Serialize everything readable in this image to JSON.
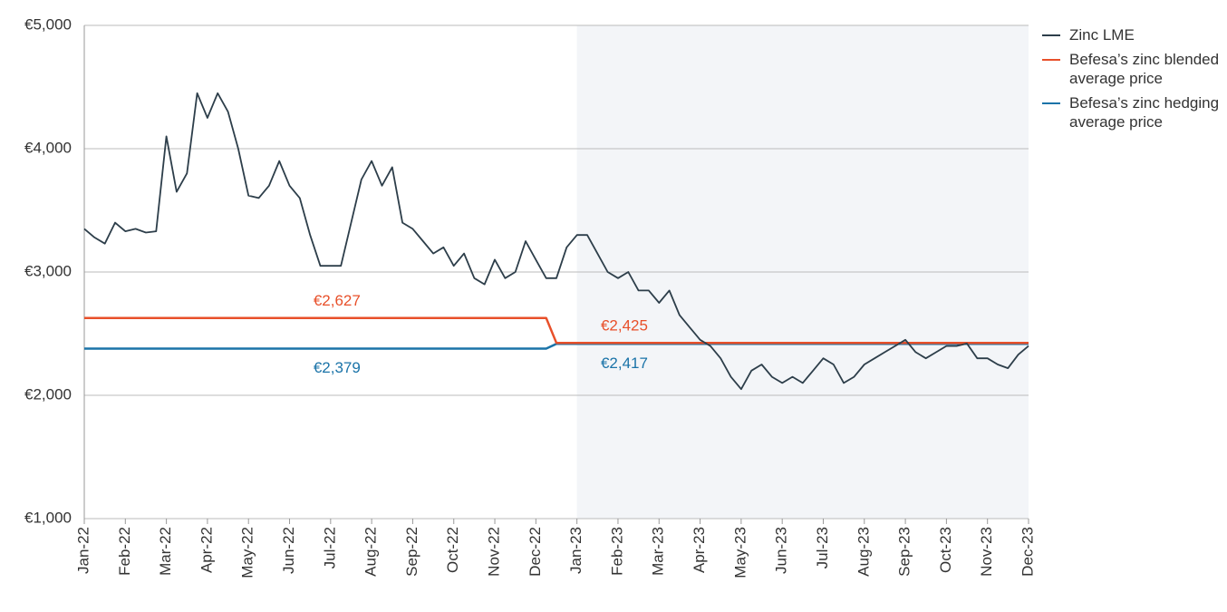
{
  "chart_data": {
    "type": "line",
    "categories": [
      "Jan-22",
      null,
      null,
      null,
      "Feb-22",
      null,
      null,
      null,
      "Mar-22",
      null,
      null,
      null,
      "Apr-22",
      null,
      null,
      null,
      "May-22",
      null,
      null,
      null,
      "Jun-22",
      null,
      null,
      null,
      "Jul-22",
      null,
      null,
      null,
      "Aug-22",
      null,
      null,
      null,
      "Sep-22",
      null,
      null,
      null,
      "Oct-22",
      null,
      null,
      null,
      "Nov-22",
      null,
      null,
      null,
      "Dec-22",
      null,
      null,
      null,
      "Jan-23",
      null,
      null,
      null,
      "Feb-23",
      null,
      null,
      null,
      "Mar-23",
      null,
      null,
      null,
      "Apr-23",
      null,
      null,
      null,
      "May-23",
      null,
      null,
      null,
      "Jun-23",
      null,
      null,
      null,
      "Jul-23",
      null,
      null,
      null,
      "Aug-23",
      null,
      null,
      null,
      "Sep-23",
      null,
      null,
      null,
      "Oct-23",
      null,
      null,
      null,
      "Nov-23",
      null,
      null,
      null,
      "Dec-23"
    ],
    "series": [
      {
        "name": "Zinc LME",
        "color": "#2d3e4a",
        "values": [
          3350,
          3280,
          3230,
          3400,
          3330,
          3350,
          3320,
          3330,
          4100,
          3650,
          3800,
          4450,
          4250,
          4450,
          4300,
          4000,
          3620,
          3600,
          3700,
          3900,
          3700,
          3600,
          3300,
          3050,
          3050,
          3050,
          3400,
          3750,
          3900,
          3700,
          3850,
          3400,
          3350,
          3250,
          3150,
          3200,
          3050,
          3150,
          2950,
          2900,
          3100,
          2950,
          3000,
          3250,
          3100,
          2950,
          2950,
          3200,
          3300,
          3300,
          3150,
          3000,
          2950,
          3000,
          2850,
          2850,
          2750,
          2850,
          2650,
          2550,
          2450,
          2400,
          2300,
          2150,
          2050,
          2200,
          2250,
          2150,
          2100,
          2150,
          2100,
          2200,
          2300,
          2250,
          2100,
          2150,
          2250,
          2300,
          2350,
          2400,
          2450,
          2350,
          2300,
          2350,
          2400,
          2400,
          2420,
          2300,
          2300,
          2250,
          2220,
          2330,
          2400
        ]
      },
      {
        "name": "Befesa’s zinc blended average price",
        "color": "#e8502a",
        "values": [
          2627,
          2627,
          2627,
          2627,
          2627,
          2627,
          2627,
          2627,
          2627,
          2627,
          2627,
          2627,
          2627,
          2627,
          2627,
          2627,
          2627,
          2627,
          2627,
          2627,
          2627,
          2627,
          2627,
          2627,
          2627,
          2627,
          2627,
          2627,
          2627,
          2627,
          2627,
          2627,
          2627,
          2627,
          2627,
          2627,
          2627,
          2627,
          2627,
          2627,
          2627,
          2627,
          2627,
          2627,
          2627,
          2627,
          2425,
          2425,
          2425,
          2425,
          2425,
          2425,
          2425,
          2425,
          2425,
          2425,
          2425,
          2425,
          2425,
          2425,
          2425,
          2425,
          2425,
          2425,
          2425,
          2425,
          2425,
          2425,
          2425,
          2425,
          2425,
          2425,
          2425,
          2425,
          2425,
          2425,
          2425,
          2425,
          2425,
          2425,
          2425,
          2425,
          2425,
          2425,
          2425,
          2425,
          2425,
          2425,
          2425,
          2425,
          2425,
          2425,
          2425
        ]
      },
      {
        "name": "Befesa’s zinc hedging average price",
        "color": "#1a73a8",
        "values": [
          2379,
          2379,
          2379,
          2379,
          2379,
          2379,
          2379,
          2379,
          2379,
          2379,
          2379,
          2379,
          2379,
          2379,
          2379,
          2379,
          2379,
          2379,
          2379,
          2379,
          2379,
          2379,
          2379,
          2379,
          2379,
          2379,
          2379,
          2379,
          2379,
          2379,
          2379,
          2379,
          2379,
          2379,
          2379,
          2379,
          2379,
          2379,
          2379,
          2379,
          2379,
          2379,
          2379,
          2379,
          2379,
          2379,
          2417,
          2417,
          2417,
          2417,
          2417,
          2417,
          2417,
          2417,
          2417,
          2417,
          2417,
          2417,
          2417,
          2417,
          2417,
          2417,
          2417,
          2417,
          2417,
          2417,
          2417,
          2417,
          2417,
          2417,
          2417,
          2417,
          2417,
          2417,
          2417,
          2417,
          2417,
          2417,
          2417,
          2417,
          2417,
          2417,
          2417,
          2417,
          2417,
          2417,
          2417,
          2417,
          2417,
          2417,
          2417,
          2417,
          2417
        ]
      }
    ],
    "annotations": [
      {
        "text": "€2,627",
        "value": 2627,
        "series": 1,
        "at": "Jul-22",
        "position": "above"
      },
      {
        "text": "€2,379",
        "value": 2379,
        "series": 2,
        "at": "Jul-22",
        "position": "below"
      },
      {
        "text": "€2,425",
        "value": 2425,
        "series": 1,
        "at": "Feb-23",
        "position": "above"
      },
      {
        "text": "€2,417",
        "value": 2417,
        "series": 2,
        "at": "Feb-23",
        "position": "below"
      }
    ],
    "ylim": [
      1000,
      5000
    ],
    "yticks": [
      {
        "value": 1000,
        "label": "€1,000"
      },
      {
        "value": 2000,
        "label": "€2,000"
      },
      {
        "value": 3000,
        "label": "€3,000"
      },
      {
        "value": 4000,
        "label": "€4,000"
      },
      {
        "value": 5000,
        "label": "€5,000"
      }
    ],
    "grid": true,
    "shaded_region": {
      "from": "Jan-23",
      "to": "Dec-23",
      "color": "#f3f5f8"
    },
    "legend": "top-right"
  }
}
